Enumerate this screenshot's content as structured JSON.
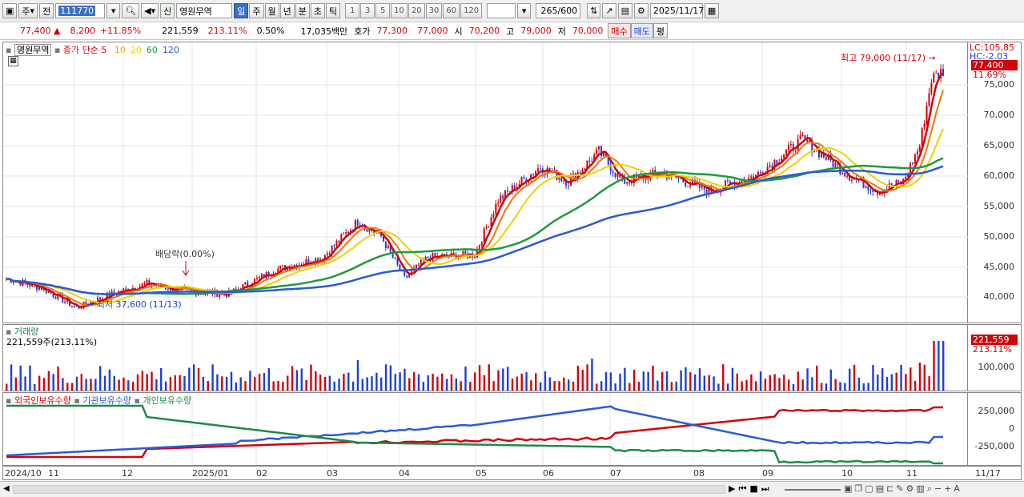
{
  "toolbar": {
    "mode_label": "주",
    "prev_label": "전",
    "code": "111770",
    "stock_tag": "신",
    "stock_name": "영원무역",
    "periods": [
      "일",
      "주",
      "월",
      "년",
      "분",
      "초",
      "틱"
    ],
    "selected_period": "일",
    "intervals": [
      "1",
      "3",
      "5",
      "10",
      "20",
      "30",
      "60",
      "120"
    ],
    "count": "265",
    "count_max": "/600",
    "date": "2025/11/17"
  },
  "quote": {
    "price": "77,400",
    "change": "8,200",
    "change_pct": "+11.85%",
    "volume": "221,559",
    "volume_ratio": "213.11%",
    "turnover": "0.50%",
    "amount": "17,035백만",
    "bid_label": "호가",
    "bid1": "77,300",
    "bid2": "77,000",
    "open_label": "시",
    "open": "70,200",
    "high_label": "고",
    "high": "79,000",
    "low_label": "저",
    "low": "70,000",
    "buy_label": "매수",
    "sell_label": "매도",
    "avg_label": "평"
  },
  "price_panel": {
    "name_label": "영원무역",
    "legend_main": "종가 단순 5",
    "ma_labels": [
      "10",
      "20",
      "60",
      "120"
    ],
    "ma_colors": [
      "#e6a000",
      "#f0d000",
      "#1e9a3c",
      "#2a5ad8"
    ],
    "lc": "LC:105,85",
    "hc": "HC:-2.03",
    "current_tag": "77,400",
    "current_pct": "11.69%",
    "high_note": "최고 79,000 (11/17)",
    "low_note": "최저 37,600 (11/13)",
    "dividend_note": "배당락(0.00%)",
    "y_ticks": [
      "75,000",
      "70,000",
      "65,000",
      "60,000",
      "55,000",
      "50,000",
      "45,000",
      "40,000"
    ]
  },
  "volume_panel": {
    "title": "거래량",
    "value_text": "221,559주(213.11%)",
    "tag_value": "221,559",
    "tag_pct": "213.11%",
    "y_ticks": [
      "100,000"
    ]
  },
  "holding_panel": {
    "legend": [
      "외국인보유수량",
      "기관보유수량",
      "개인보유수량"
    ],
    "colors": [
      "#d4000a",
      "#2a5ad8",
      "#1e8a4c"
    ],
    "y_ticks": [
      "250,000",
      "0",
      "-250,000"
    ]
  },
  "x_axis": {
    "labels": [
      "2024/10",
      "11",
      "12",
      "2025/01",
      "02",
      "03",
      "04",
      "05",
      "06",
      "07",
      "08",
      "09",
      "10",
      "11"
    ],
    "right_label": "11/17"
  }
}
